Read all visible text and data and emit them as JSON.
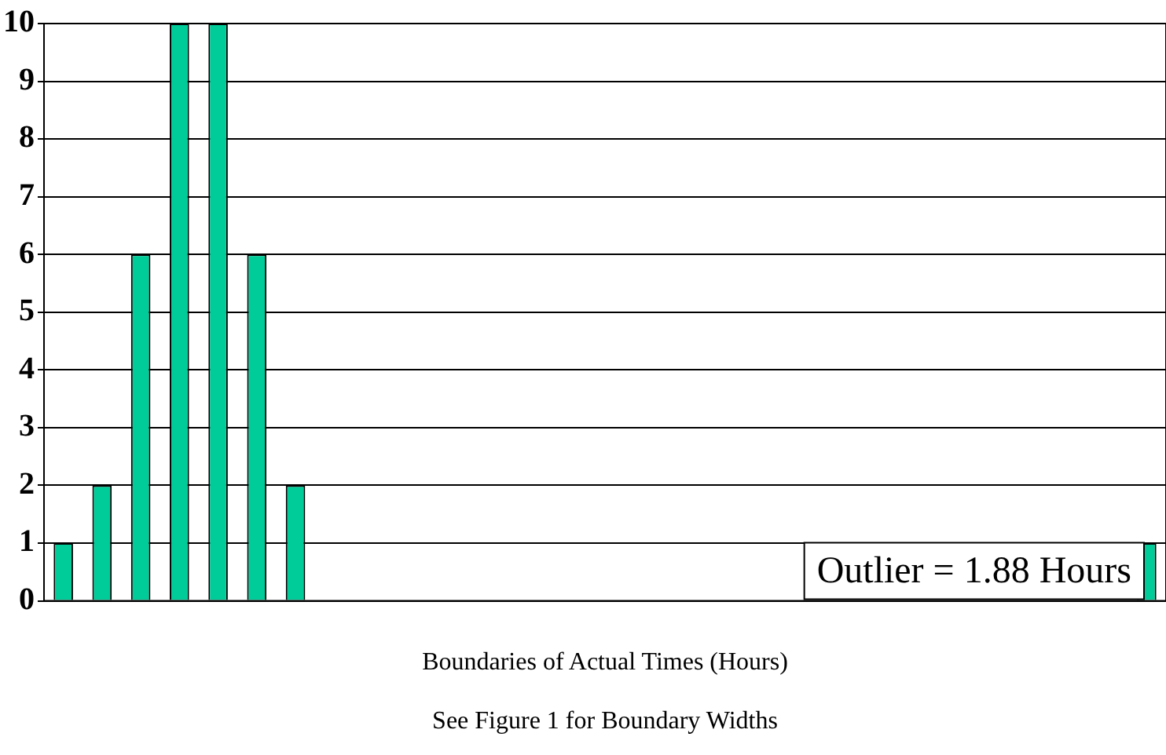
{
  "chart_data": {
    "type": "bar",
    "categories": [
      null,
      null,
      null,
      null,
      null,
      null,
      null,
      null,
      null,
      null,
      null,
      null,
      null,
      null,
      null,
      null,
      null,
      null,
      null,
      null,
      null,
      null,
      null,
      null,
      null,
      null,
      null,
      null,
      null
    ],
    "values": [
      1,
      2,
      6,
      10,
      10,
      6,
      2,
      0,
      0,
      0,
      0,
      0,
      0,
      0,
      0,
      0,
      0,
      0,
      0,
      0,
      0,
      0,
      0,
      0,
      0,
      0,
      0,
      0,
      1
    ],
    "color": "#00cc99",
    "ylim": [
      0,
      10
    ],
    "yticks": [
      0,
      1,
      2,
      3,
      4,
      5,
      6,
      7,
      8,
      9,
      10
    ],
    "grid": "y",
    "tick_labels": "y",
    "xlabel": "Boundaries of Actual Times (Hours)",
    "annotations": [
      "Outlier = 1.88 Hours",
      "See Figure 1 for Boundary Widths"
    ]
  }
}
